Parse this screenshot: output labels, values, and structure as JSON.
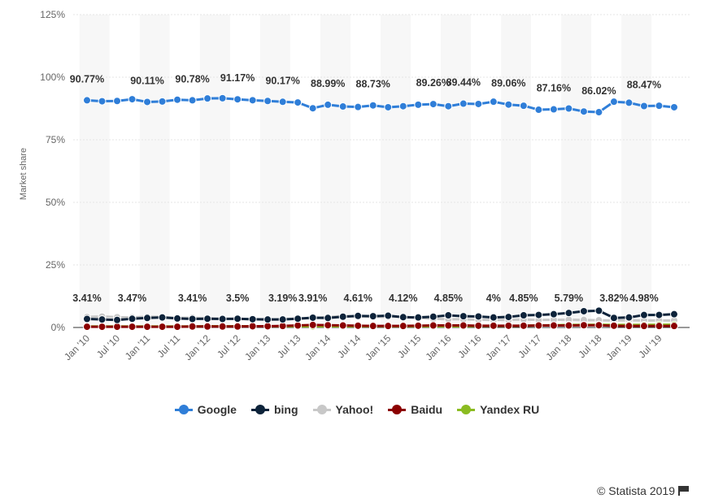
{
  "chart_data": {
    "type": "line",
    "ylabel": "Market share",
    "ylim": [
      0,
      125
    ],
    "y_ticks": [
      "0%",
      "25%",
      "50%",
      "75%",
      "100%",
      "125%"
    ],
    "y_tick_values": [
      0,
      25,
      50,
      75,
      100,
      125
    ],
    "x_tick_labels": [
      "Jan '10",
      "Jul '10",
      "Jan '11",
      "Jul '11",
      "Jan '12",
      "Jul '12",
      "Jan '13",
      "Jul '13",
      "Jan '14",
      "Jul '14",
      "Jan '15",
      "Jul '15",
      "Jan '16",
      "Jul '16",
      "Jan '17",
      "Jul '17",
      "Jan '18",
      "Jul '18",
      "Jan '19",
      "Jul '19"
    ],
    "x_count": 40,
    "grid": true,
    "legend_position": "bottom",
    "series": [
      {
        "name": "Google",
        "color": "#2f7ed8",
        "values": [
          90.77,
          90.4,
          90.5,
          91.2,
          90.11,
          90.3,
          91.0,
          90.78,
          91.5,
          91.6,
          91.17,
          90.8,
          90.5,
          90.17,
          89.9,
          87.6,
          88.99,
          88.3,
          88.1,
          88.73,
          88.0,
          88.4,
          89.0,
          89.26,
          88.4,
          89.44,
          89.3,
          90.2,
          89.06,
          88.6,
          87.0,
          87.16,
          87.5,
          86.3,
          86.02,
          90.2,
          89.8,
          88.47,
          88.6,
          88.0
        ],
        "labels": {
          "0": "90.77%",
          "4": "90.11%",
          "7": "90.78%",
          "10": "91.17%",
          "13": "90.17%",
          "16": "88.99%",
          "19": "88.73%",
          "23": "89.26%",
          "25": "89.44%",
          "28": "89.06%",
          "31": "87.16%",
          "34": "86.02%",
          "37": "88.47%"
        }
      },
      {
        "name": "bing",
        "color": "#0d233a",
        "values": [
          3.41,
          3.2,
          3.0,
          3.47,
          3.8,
          4.0,
          3.6,
          3.41,
          3.5,
          3.4,
          3.5,
          3.3,
          3.2,
          3.19,
          3.5,
          3.91,
          3.8,
          4.3,
          4.61,
          4.5,
          4.7,
          4.12,
          4.0,
          4.3,
          4.85,
          4.5,
          4.4,
          4.0,
          4.2,
          4.85,
          5.0,
          5.3,
          5.79,
          6.5,
          6.7,
          3.82,
          4.0,
          4.98,
          5.0,
          5.3
        ],
        "labels": {
          "0": "3.41%",
          "3": "3.47%",
          "7": "3.41%",
          "10": "3.5%",
          "13": "3.19%",
          "15": "3.91%",
          "18": "4.61%",
          "21": "4.12%",
          "24": "4.85%",
          "27": "4%",
          "29": "4.85%",
          "32": "5.79%",
          "35": "3.82%",
          "37": "4.98%"
        }
      },
      {
        "name": "Yahoo!",
        "color": "#c8c8c8",
        "values": [
          4.2,
          4.4,
          4.1,
          4.0,
          4.3,
          4.2,
          3.8,
          3.9,
          3.7,
          3.5,
          3.4,
          3.3,
          3.1,
          3.3,
          3.6,
          3.7,
          4.2,
          4.6,
          4.4,
          4.2,
          4.3,
          4.2,
          3.9,
          3.5,
          3.3,
          3.3,
          3.1,
          3.0,
          3.0,
          3.2,
          3.0,
          3.1,
          3.1,
          3.0,
          2.9,
          2.8,
          2.9,
          2.8,
          2.8,
          2.8
        ],
        "labels": {}
      },
      {
        "name": "Baidu",
        "color": "#8b0000",
        "values": [
          0.3,
          0.3,
          0.3,
          0.3,
          0.3,
          0.3,
          0.3,
          0.4,
          0.4,
          0.4,
          0.4,
          0.5,
          0.5,
          0.6,
          0.8,
          1.0,
          0.9,
          0.8,
          0.7,
          0.6,
          0.6,
          0.6,
          0.7,
          0.8,
          0.8,
          0.8,
          0.7,
          0.7,
          0.7,
          0.7,
          0.8,
          0.8,
          0.8,
          0.9,
          0.9,
          0.7,
          0.6,
          0.6,
          0.6,
          0.6
        ],
        "labels": {}
      },
      {
        "name": "Yandex RU",
        "color": "#8bbc21",
        "values": [
          0.4,
          0.4,
          0.4,
          0.4,
          0.4,
          0.4,
          0.4,
          0.4,
          0.5,
          0.5,
          0.5,
          0.5,
          0.5,
          0.5,
          0.5,
          0.5,
          0.5,
          0.5,
          0.5,
          0.5,
          0.5,
          0.5,
          0.5,
          0.5,
          0.5,
          0.5,
          0.6,
          0.6,
          0.6,
          0.7,
          0.8,
          0.9,
          1.0,
          1.0,
          1.1,
          1.0,
          1.0,
          1.0,
          1.1,
          1.1
        ],
        "labels": {}
      }
    ]
  },
  "credit": "© Statista 2019"
}
